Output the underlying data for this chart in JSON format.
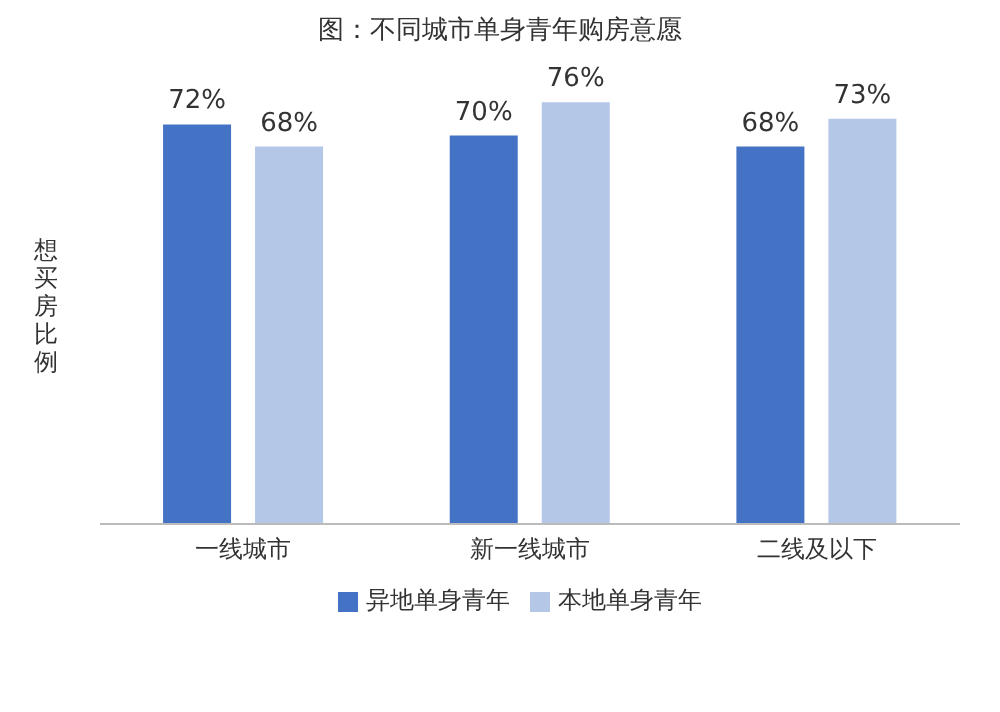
{
  "chart_data": {
    "type": "bar",
    "title": "图：不同城市单身青年购房意愿",
    "ylabel": "想买房比例",
    "categories": [
      "一线城市",
      "新一线城市",
      "二线及以下"
    ],
    "series": [
      {
        "name": "异地单身青年",
        "color": "#4472c4",
        "values": [
          72,
          70,
          68
        ],
        "value_labels": [
          "72%",
          "70%",
          "68%"
        ]
      },
      {
        "name": "本地单身青年",
        "color": "#b4c7e7",
        "values": [
          68,
          76,
          73
        ],
        "value_labels": [
          "68%",
          "76%",
          "73%"
        ]
      }
    ],
    "legend": "bottom"
  }
}
